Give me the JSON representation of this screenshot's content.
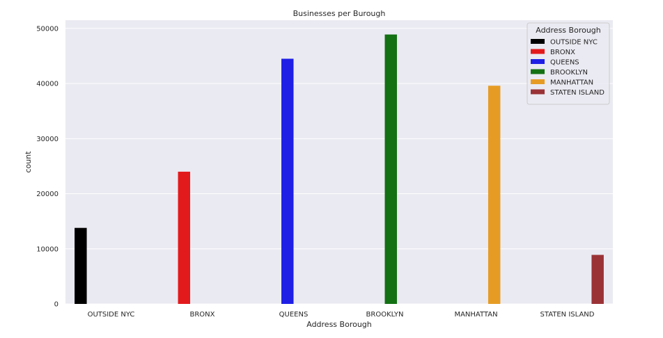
{
  "chart_data": {
    "type": "bar",
    "title": "Businesses per Burough",
    "xlabel": "Address Borough",
    "ylabel": "count",
    "ylim": [
      0,
      51500
    ],
    "yticks": [
      0,
      10000,
      20000,
      30000,
      40000,
      50000
    ],
    "grid": true,
    "legend_placement": "top-right",
    "legend_title": "Address Borough",
    "categories": [
      "OUTSIDE NYC",
      "BRONX",
      "QUEENS",
      "BROOKLYN",
      "MANHATTAN",
      "STATEN ISLAND"
    ],
    "series": [
      {
        "name": "OUTSIDE NYC",
        "color": "#000000",
        "values": [
          13800,
          0,
          0,
          0,
          0,
          0
        ]
      },
      {
        "name": "BRONX",
        "color": "#e31a1c",
        "values": [
          0,
          24000,
          0,
          0,
          0,
          0
        ]
      },
      {
        "name": "QUEENS",
        "color": "#1f1fe6",
        "values": [
          0,
          0,
          44500,
          0,
          0,
          0
        ]
      },
      {
        "name": "BROOKLYN",
        "color": "#137013",
        "values": [
          0,
          0,
          0,
          48900,
          0,
          0
        ]
      },
      {
        "name": "MANHATTAN",
        "color": "#e69c24",
        "values": [
          0,
          0,
          0,
          0,
          39600,
          0
        ]
      },
      {
        "name": "STATEN ISLAND",
        "color": "#9a3336",
        "values": [
          0,
          0,
          0,
          0,
          0,
          8900
        ]
      }
    ]
  },
  "style": {
    "plot_background": "#eaeaf2",
    "grid_color": "#ffffff"
  }
}
